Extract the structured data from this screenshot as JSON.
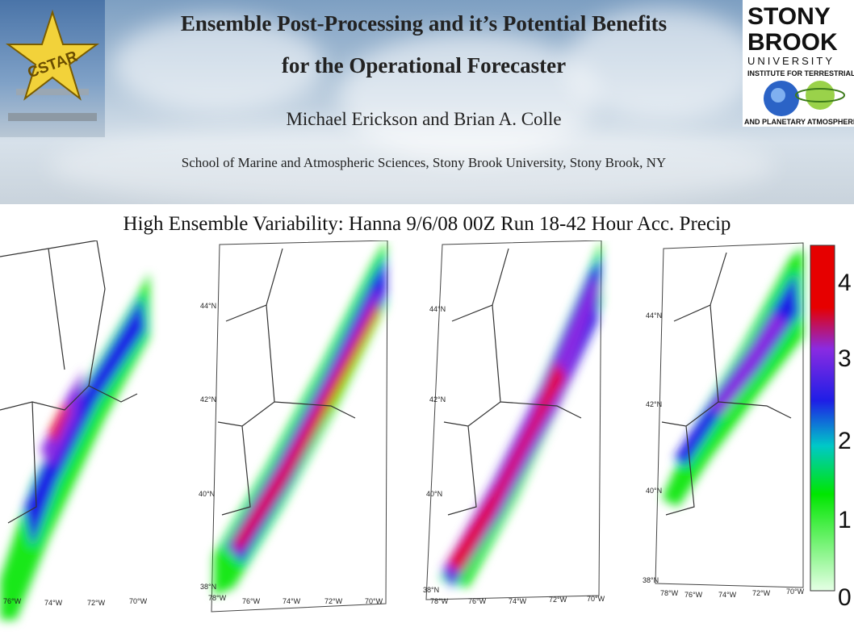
{
  "header": {
    "title_line1": "Ensemble Post-Processing and it’s Potential Benefits",
    "title_line2": "for the Operational Forecaster",
    "authors": "Michael Erickson and Brian A. Colle",
    "affiliation": "School of Marine and Atmospheric Sciences, Stony Brook University, Stony Brook, NY"
  },
  "logos": {
    "left": "CSTAR",
    "right_line1": "STONY",
    "right_line2": "BROOK",
    "right_line3": "UNIVERSITY",
    "right_line4": "INSTITUTE FOR TERRESTRIAL",
    "right_line5": "AND PLANETARY ATMOSPHERES"
  },
  "subtitle": "High Ensemble Variability: Hanna 9/6/08 00Z Run 18-42 Hour Acc. Precip",
  "maps": {
    "lat_labels": [
      "44°N",
      "42°N",
      "40°N",
      "38°N"
    ],
    "lon_labels": [
      "78°W",
      "76°W",
      "74°W",
      "72°W",
      "70°W"
    ]
  },
  "colorbar": {
    "ticks": [
      "4",
      "3",
      "2",
      "1",
      "0"
    ],
    "colors": [
      "#e60000",
      "#8a2be2",
      "#1e1ee6",
      "#00c8c8",
      "#00e600",
      "#e6ffe6"
    ]
  }
}
